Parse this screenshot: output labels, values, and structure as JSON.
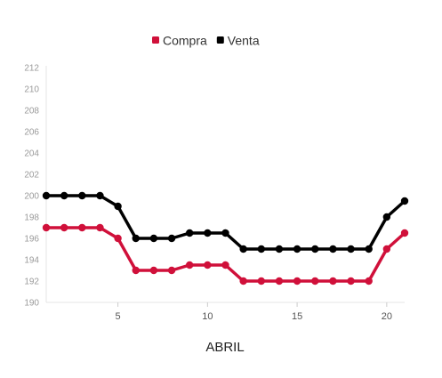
{
  "chart_data": {
    "type": "line",
    "title": "",
    "xlabel": "ABRIL",
    "ylabel": "",
    "x": [
      1,
      2,
      3,
      4,
      5,
      6,
      7,
      8,
      9,
      10,
      11,
      12,
      13,
      14,
      15,
      16,
      17,
      18,
      19,
      20,
      21
    ],
    "xticks": [
      5,
      10,
      15,
      20
    ],
    "xlim": [
      1,
      21
    ],
    "yticks": [
      190,
      192,
      194,
      196,
      198,
      200,
      202,
      204,
      206,
      208,
      210,
      212
    ],
    "ylim": [
      190,
      212
    ],
    "grid": false,
    "legend_position": "top-center",
    "series": [
      {
        "name": "Compra",
        "color": "#d0103a",
        "values": [
          197,
          197,
          197,
          197,
          196,
          193,
          193,
          193,
          193.5,
          193.5,
          193.5,
          192,
          192,
          192,
          192,
          192,
          192,
          192,
          192,
          195,
          196.5
        ]
      },
      {
        "name": "Venta",
        "color": "#000000",
        "values": [
          200,
          200,
          200,
          200,
          199,
          196,
          196,
          196,
          196.5,
          196.5,
          196.5,
          195,
          195,
          195,
          195,
          195,
          195,
          195,
          195,
          198,
          199.5
        ]
      }
    ]
  }
}
